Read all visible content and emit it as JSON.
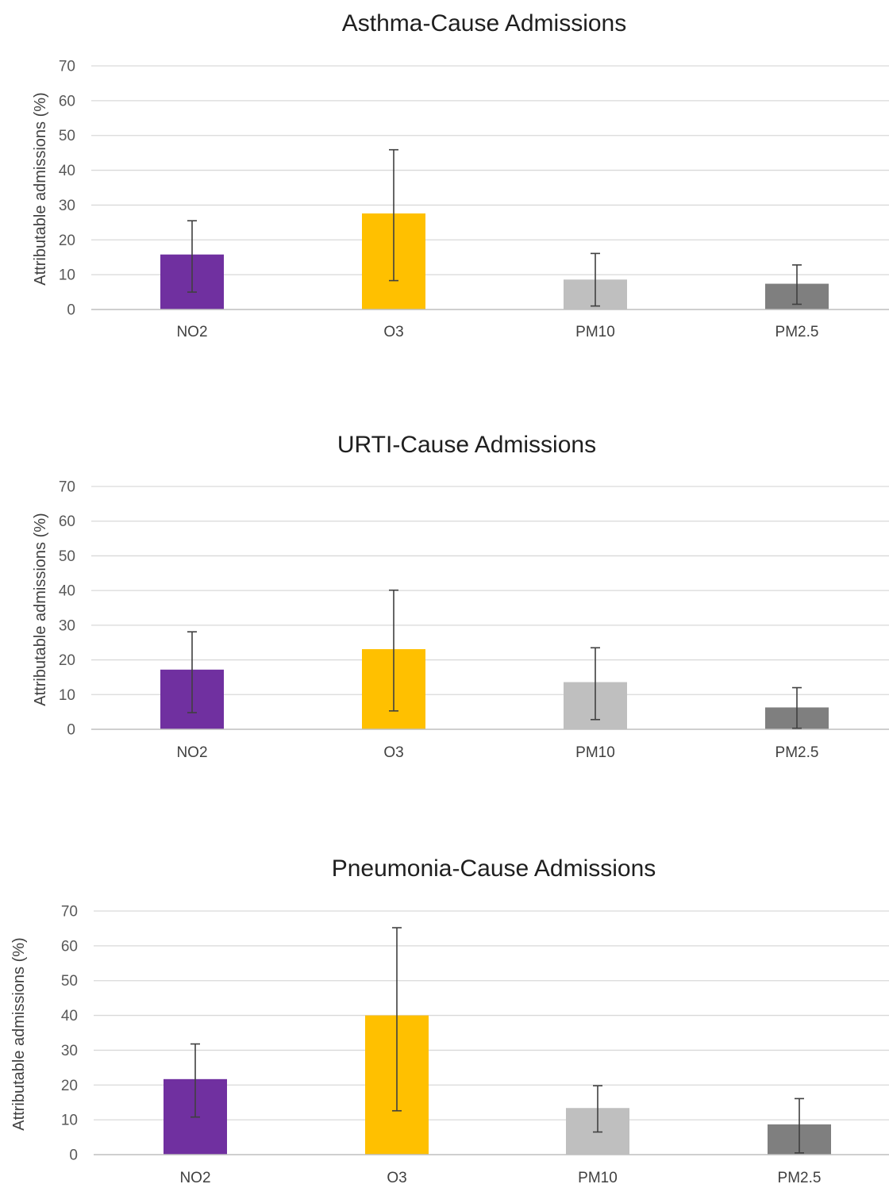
{
  "chart_data": [
    {
      "type": "bar",
      "title": "Asthma-Cause Admissions",
      "xlabel": "",
      "ylabel": "Attributable admissions (%)",
      "ylim": [
        0,
        70
      ],
      "yticks": [
        0,
        10,
        20,
        30,
        40,
        50,
        60,
        70
      ],
      "grid": true,
      "categories": [
        "NO2",
        "O3",
        "PM10",
        "PM2.5"
      ],
      "values": [
        15.8,
        27.6,
        8.6,
        7.4
      ],
      "error_low": [
        5.0,
        8.3,
        1.0,
        1.5
      ],
      "error_high": [
        25.5,
        45.9,
        16.1,
        12.8
      ],
      "colors": [
        "#7030a0",
        "#ffc000",
        "#bfbfbf",
        "#7f7f7f"
      ]
    },
    {
      "type": "bar",
      "title": "URTI-Cause Admissions",
      "xlabel": "",
      "ylabel": "Attributable admissions (%)",
      "ylim": [
        0,
        70
      ],
      "yticks": [
        0,
        10,
        20,
        30,
        40,
        50,
        60,
        70
      ],
      "grid": true,
      "categories": [
        "NO2",
        "O3",
        "PM10",
        "PM2.5"
      ],
      "values": [
        17.2,
        23.1,
        13.6,
        6.3
      ],
      "error_low": [
        4.8,
        5.3,
        2.8,
        0.3
      ],
      "error_high": [
        28.1,
        40.1,
        23.5,
        12.0
      ],
      "colors": [
        "#7030a0",
        "#ffc000",
        "#bfbfbf",
        "#7f7f7f"
      ]
    },
    {
      "type": "bar",
      "title": "Pneumonia-Cause Admissions",
      "xlabel": "",
      "ylabel": "Attributable admissions (%)",
      "ylim": [
        0,
        70
      ],
      "yticks": [
        0,
        10,
        20,
        30,
        40,
        50,
        60,
        70
      ],
      "grid": true,
      "categories": [
        "NO2",
        "O3",
        "PM10",
        "PM2.5"
      ],
      "values": [
        21.7,
        40.0,
        13.4,
        8.7
      ],
      "error_low": [
        10.8,
        12.6,
        6.5,
        0.5
      ],
      "error_high": [
        31.8,
        65.2,
        19.8,
        16.1
      ],
      "colors": [
        "#7030a0",
        "#ffc000",
        "#bfbfbf",
        "#7f7f7f"
      ]
    }
  ]
}
